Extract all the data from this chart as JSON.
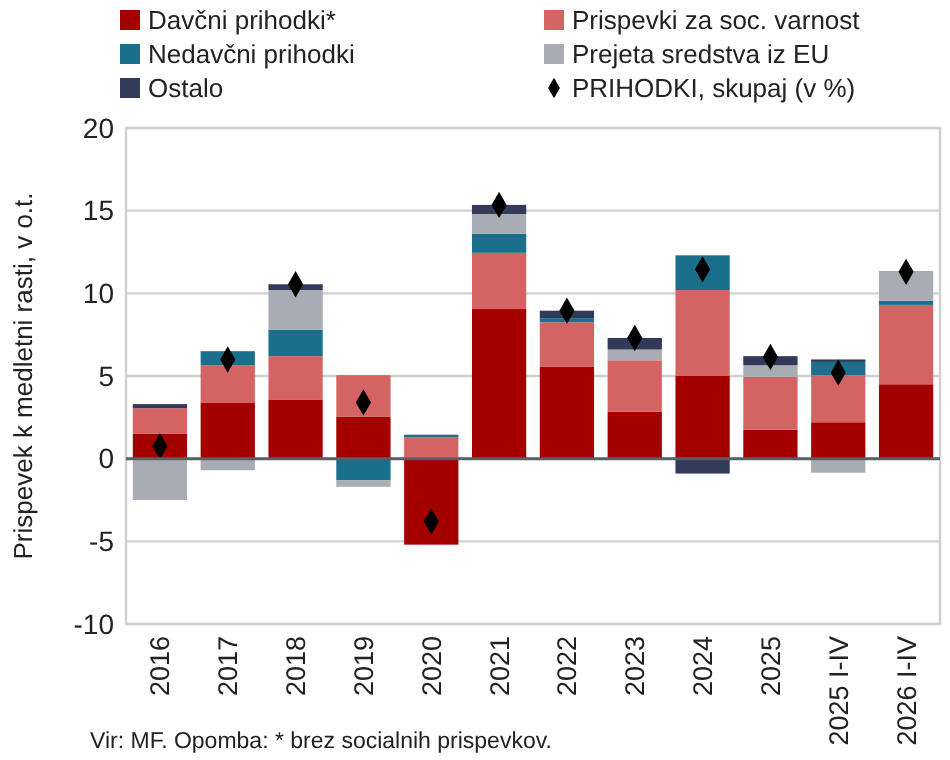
{
  "chart_data": {
    "type": "bar",
    "stacked": true,
    "ylabel": "Prispevek k medletni rasti, v o.t.",
    "annotations": [
      "Vir: MF. Opomba: * brez socialnih prispevkov."
    ],
    "categories": [
      "2016",
      "2017",
      "2018",
      "2019",
      "2020",
      "2021",
      "2022",
      "2023",
      "2024",
      "2025",
      "2025 I-IV",
      "2026 I-IV"
    ],
    "series": [
      {
        "name": "Davčni prihodki*",
        "color": "#a50000",
        "values": [
          1.5,
          3.4,
          3.55,
          2.55,
          -5.2,
          9.05,
          5.55,
          2.85,
          5.0,
          1.75,
          2.2,
          4.5
        ]
      },
      {
        "name": "Prispevki za soc. varnost",
        "color": "#d46464",
        "values": [
          1.55,
          2.25,
          2.65,
          2.5,
          1.3,
          3.4,
          2.7,
          3.1,
          5.2,
          3.2,
          2.85,
          4.8
        ]
      },
      {
        "name": "Nedavčni prihodki",
        "color": "#1a6f8a",
        "values": [
          0,
          0.85,
          1.6,
          -1.3,
          0.15,
          1.15,
          0.25,
          0,
          2.1,
          0,
          0.8,
          0.25
        ]
      },
      {
        "name": "Prejeta sredstva iz EU",
        "color": "#a8adb3",
        "values": [
          -2.5,
          -0.7,
          2.4,
          -0.4,
          0,
          1.2,
          0,
          0.65,
          0,
          0.7,
          -0.85,
          1.8
        ]
      },
      {
        "name": "Ostalo",
        "color": "#323a5a",
        "values": [
          0.25,
          0,
          0.35,
          0,
          0,
          0.55,
          0.45,
          0.7,
          -0.9,
          0.55,
          0.15,
          0
        ]
      },
      {
        "name": "PRIHODKI, skupaj (v %)",
        "type": "scatter",
        "marker": "diamond",
        "color": "#000000",
        "values": [
          0.75,
          6.0,
          10.55,
          3.4,
          -3.8,
          15.35,
          8.95,
          7.3,
          11.45,
          6.15,
          5.2,
          11.3
        ]
      }
    ],
    "ylim": [
      -10,
      20
    ],
    "yticks": [
      -10,
      -5,
      0,
      5,
      10,
      15,
      20
    ],
    "grid": "y",
    "legend": "top"
  }
}
